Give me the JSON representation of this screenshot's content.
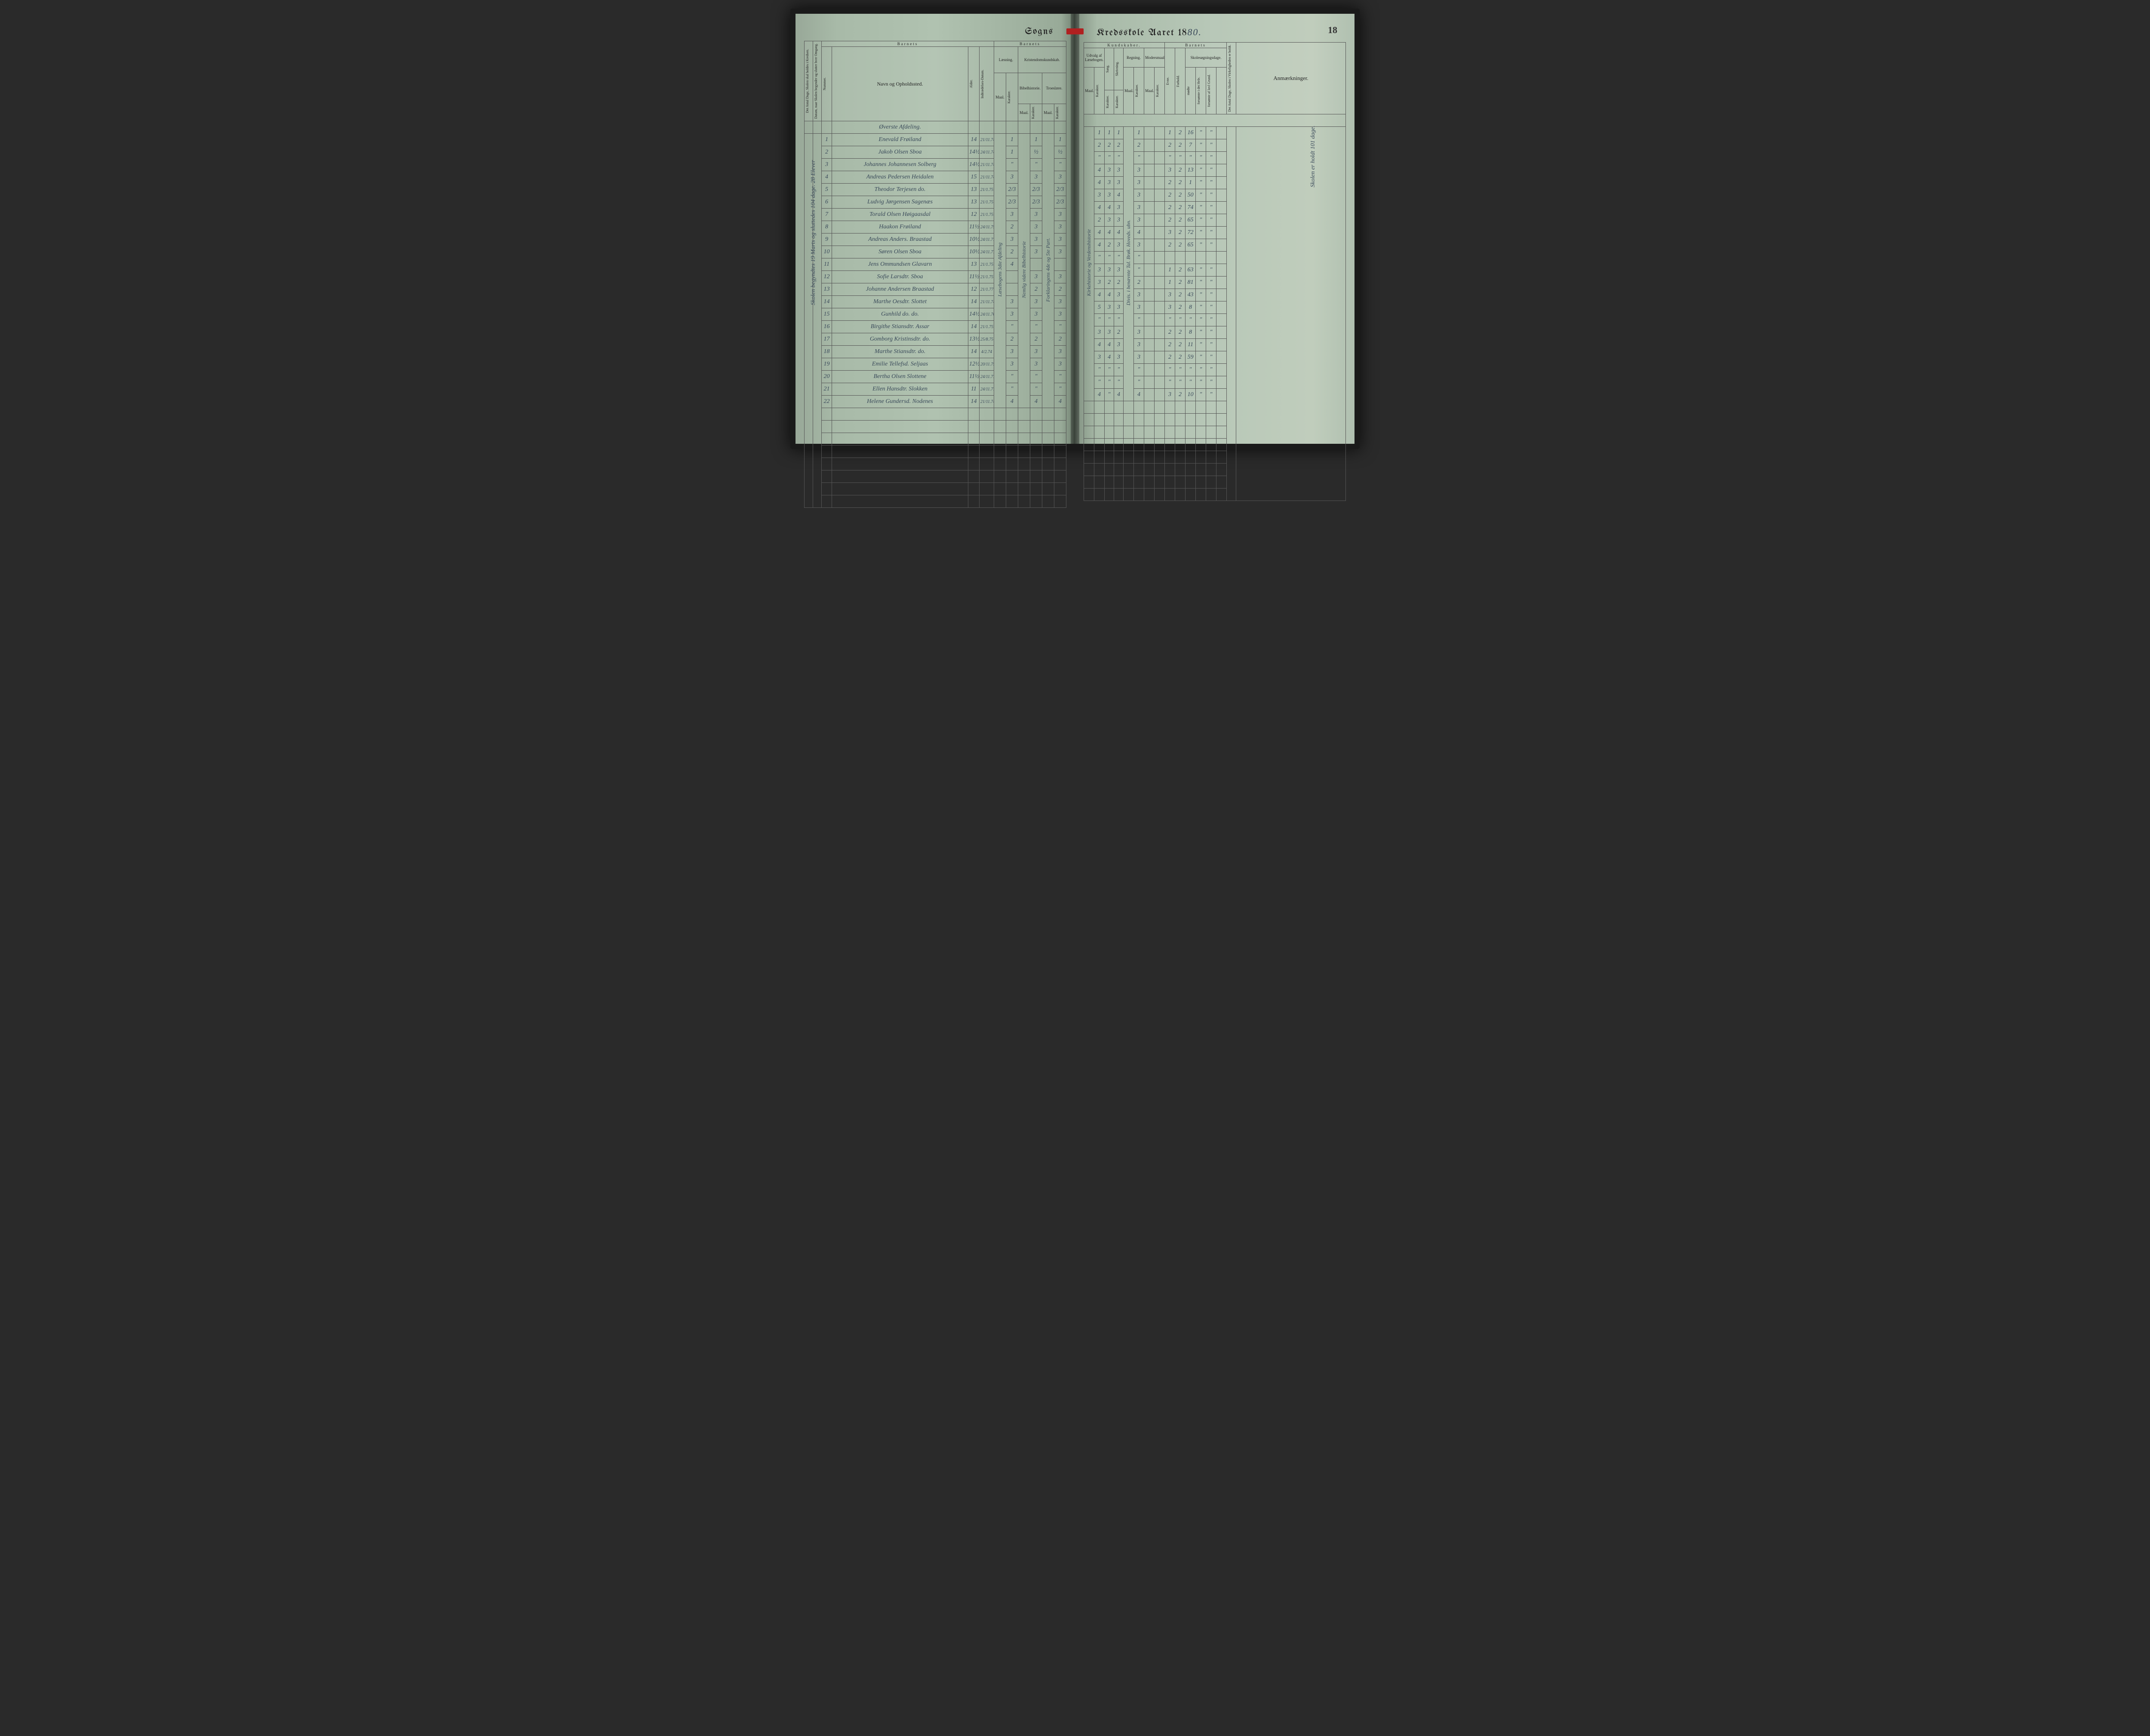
{
  "page_number": "18",
  "title_left": "Sogns",
  "title_right_prefix": "Kredsskole Aaret 18",
  "title_year_suffix": "80.",
  "colors": {
    "ink": "#3a4a5a",
    "print": "#222222",
    "rule": "#555555",
    "ribbon": "#b02020",
    "paper_left_start": "#98a898",
    "paper_left_end": "#708070",
    "paper_right_start": "#809080",
    "paper_right_end": "#b0c0b0",
    "cover": "#1a1a1a"
  },
  "left_margin_headers": {
    "col1": "Det Antal Dage, Skolen skal holdes i Kredsen.",
    "col2": "Datum, naar Skolen begynder og slutter hver Omgang."
  },
  "left_headers": {
    "barnets": "Barnets",
    "nummer": "Nummer.",
    "navn": "Navn og Opholdssted.",
    "alder": "Alder.",
    "indtr": "Indtrædelses-Datum.",
    "barnets2": "Barnets",
    "laesning": "Læsning.",
    "kristen": "Kristendomskundskab.",
    "bibel": "Bibelhistorie.",
    "troes": "Troeslære.",
    "maal": "Maal.",
    "kar": "Karakter."
  },
  "right_headers": {
    "kundskaber": "Kundskaber.",
    "udvalg": "Udvalg af Læsebogen.",
    "sang": "Sang.",
    "skriv": "Skrivning.",
    "regning": "Regning.",
    "modersmaal": "Modersmaal.",
    "barnets": "Barnets",
    "evne": "Evne.",
    "forhold": "Forhold.",
    "skolesogn": "Skolesøgningsdage.",
    "modte": "mødte",
    "fors1": "forsømte i det Hele.",
    "fors2": "forsømte af lovl Grund.",
    "antal": "Det Antal Dage, Skolen i Virkeligheden er holdt.",
    "anm": "Anmærkninger.",
    "maal": "Maal.",
    "kar": "Karakter."
  },
  "section_heading": "Øverste Afdeling.",
  "margin_note_left": "Skolen begyndtes 19 Marts og sluttedes 104 dage. 28 Elever",
  "margin_note_right": "Skolen er holdt 101 dage.",
  "vertical_in_table_left": {
    "laesning_maal": "Læsebogens 3die Afdeling",
    "bibel_maal": "Nemlig videre Bibelhistorie",
    "troes_maal": "Forklaringens 4de og 5te Part."
  },
  "vertical_in_table_right": {
    "udvalg_maal": "Kirkehistorie og Verdenshistorie",
    "regning_maal": "Divis. i benævnte Tal. Brøk. Hoveds. ubn.",
    "skriv_note": "og 4"
  },
  "rows": [
    {
      "n": "1",
      "name": "Enevald Frøiland",
      "age": "14",
      "dat": "21/11.74",
      "l_k": "1",
      "b_k": "1",
      "t_k": "1",
      "u_k": "1",
      "sa": "1",
      "sk": "1",
      "re_k": "1",
      "ev": "1",
      "fo": "2",
      "md": "16",
      "f1": "\"",
      "f2": "\""
    },
    {
      "n": "2",
      "name": "Jakob Olsen Sboa",
      "age": "14½",
      "dat": "24/11.74",
      "l_k": "1",
      "b_k": "½",
      "t_k": "½",
      "u_k": "2",
      "sa": "2",
      "sk": "2",
      "re_k": "2",
      "ev": "2",
      "fo": "2",
      "md": "7",
      "f1": "\"",
      "f2": "\""
    },
    {
      "n": "3",
      "name": "Johannes Johannesen Solberg",
      "age": "14½",
      "dat": "21/11.74",
      "l_k": "\"",
      "b_k": "\"",
      "t_k": "\"",
      "u_k": "\"",
      "sa": "\"",
      "sk": "\"",
      "re_k": "\"",
      "ev": "\"",
      "fo": "\"",
      "md": "\"",
      "f1": "\"",
      "f2": "\""
    },
    {
      "n": "4",
      "name": "Andreas Pedersen Heidalen",
      "age": "15",
      "dat": "21/11.74",
      "l_k": "3",
      "b_k": "3",
      "t_k": "3",
      "u_k": "4",
      "sa": "3",
      "sk": "3",
      "re_k": "3",
      "ev": "3",
      "fo": "2",
      "md": "13",
      "f1": "\"",
      "f2": "\""
    },
    {
      "n": "5",
      "name": "Theodor Terjesen   do.",
      "age": "13",
      "dat": "21/1.75",
      "l_k": "2/3",
      "b_k": "2/3",
      "t_k": "2/3",
      "u_k": "4",
      "sa": "3",
      "sk": "3",
      "re_k": "3",
      "ev": "2",
      "fo": "2",
      "md": "1",
      "f1": "\"",
      "f2": "\""
    },
    {
      "n": "6",
      "name": "Ludvig Jørgensen Sagenæs",
      "age": "13",
      "dat": "21/1.75",
      "l_k": "2/3",
      "b_k": "2/3",
      "t_k": "2/3",
      "u_k": "3",
      "sa": "3",
      "sk": "4",
      "re_k": "3",
      "ev": "2",
      "fo": "2",
      "md": "50",
      "f1": "\"",
      "f2": "\""
    },
    {
      "n": "7",
      "name": "Torald Olsen Høigaasdal",
      "age": "12",
      "dat": "21/1.75",
      "l_k": "3",
      "b_k": "3",
      "t_k": "3",
      "u_k": "4",
      "sa": "4",
      "sk": "3",
      "re_k": "3",
      "ev": "2",
      "fo": "2",
      "md": "74",
      "f1": "\"",
      "f2": "\""
    },
    {
      "n": "8",
      "name": "Haakon Frøiland",
      "age": "11½",
      "dat": "24/11.75",
      "l_k": "2",
      "b_k": "3",
      "t_k": "3",
      "u_k": "2",
      "sa": "3",
      "sk": "3",
      "re_k": "3",
      "ev": "2",
      "fo": "2",
      "md": "65",
      "f1": "\"",
      "f2": "\""
    },
    {
      "n": "9",
      "name": "Andreas Anders. Braastad",
      "age": "10½",
      "dat": "24/11.77",
      "l_k": "3",
      "b_k": "3",
      "t_k": "3",
      "u_k": "4",
      "sa": "4",
      "sk": "4",
      "re_k": "4",
      "ev": "3",
      "fo": "2",
      "md": "72",
      "f1": "\"",
      "f2": "\""
    },
    {
      "n": "10",
      "name": "Søren Olsen Sboa",
      "age": "10½",
      "dat": "24/11.77",
      "l_k": "2",
      "b_k": "3",
      "t_k": "3",
      "u_k": "4",
      "sa": "2",
      "sk": "3",
      "re_k": "3",
      "ev": "2",
      "fo": "2",
      "md": "65",
      "f1": "\"",
      "f2": "\""
    },
    {
      "n": "11",
      "name": "Jens Ommundsen Glavarn",
      "age": "13",
      "dat": "21/1.75",
      "l_k": "4",
      "b_k": "",
      "t_k": "",
      "u_k": "\"",
      "sa": "\"",
      "sk": "\"",
      "re_k": "\"",
      "ev": "",
      "fo": "",
      "md": "",
      "f1": "",
      "f2": ""
    },
    {
      "n": "12",
      "name": "Sofie Larsdtr. Sboa",
      "age": "11½",
      "dat": "21/1.75",
      "l_k": "",
      "b_k": "3",
      "t_k": "3",
      "u_k": "3",
      "sa": "3",
      "sk": "3",
      "re_k": "\"",
      "ev": "1",
      "fo": "2",
      "md": "63",
      "f1": "\"",
      "f2": "\""
    },
    {
      "n": "13",
      "name": "Johanne Andersen Braastad",
      "age": "12",
      "dat": "21/1.77",
      "l_k": "",
      "b_k": "2",
      "t_k": "2",
      "u_k": "3",
      "sa": "2",
      "sk": "2",
      "re_k": "2",
      "ev": "1",
      "fo": "2",
      "md": "81",
      "f1": "\"",
      "f2": "\""
    },
    {
      "n": "14",
      "name": "Marthe Oesdtr. Slottet",
      "age": "14",
      "dat": "21/11.74",
      "l_k": "3",
      "b_k": "3",
      "t_k": "3",
      "u_k": "4",
      "sa": "4",
      "sk": "3",
      "re_k": "3",
      "ev": "3",
      "fo": "2",
      "md": "43",
      "f1": "\"",
      "f2": "\""
    },
    {
      "n": "15",
      "name": "Gunhild   do.    do.",
      "age": "14½",
      "dat": "24/11.76",
      "l_k": "3",
      "b_k": "3",
      "t_k": "3",
      "u_k": "5",
      "sa": "3",
      "sk": "3",
      "re_k": "3",
      "ev": "3",
      "fo": "2",
      "md": "8",
      "f1": "\"",
      "f2": "\""
    },
    {
      "n": "16",
      "name": "Birgithe Stiansdtr. Assar",
      "age": "14",
      "dat": "21/1.75",
      "l_k": "\"",
      "b_k": "\"",
      "t_k": "\"",
      "u_k": "\"",
      "sa": "\"",
      "sk": "\"",
      "re_k": "\"",
      "ev": "\"",
      "fo": "\"",
      "md": "\"",
      "f1": "\"",
      "f2": "\""
    },
    {
      "n": "17",
      "name": "Gomborg Kristinsdtr.  do.",
      "age": "13½",
      "dat": "25/8.75",
      "l_k": "2",
      "b_k": "2",
      "t_k": "2",
      "u_k": "3",
      "sa": "3",
      "sk": "2",
      "re_k": "3",
      "ev": "2",
      "fo": "2",
      "md": "8",
      "f1": "\"",
      "f2": "\""
    },
    {
      "n": "18",
      "name": "Marthe Stiansdtr.   do.",
      "age": "14",
      "dat": "4/2.74",
      "l_k": "3",
      "b_k": "3",
      "t_k": "3",
      "u_k": "4",
      "sa": "4",
      "sk": "3",
      "re_k": "3",
      "ev": "2",
      "fo": "2",
      "md": "11",
      "f1": "\"",
      "f2": "\""
    },
    {
      "n": "19",
      "name": "Emilie Tellefsd. Seljaas",
      "age": "12½",
      "dat": "20/11.75",
      "l_k": "3",
      "b_k": "3",
      "t_k": "3",
      "u_k": "3",
      "sa": "4",
      "sk": "3",
      "re_k": "3",
      "ev": "2",
      "fo": "2",
      "md": "59",
      "f1": "\"",
      "f2": "\""
    },
    {
      "n": "20",
      "name": "Bertha Olsen Slottene",
      "age": "11½",
      "dat": "24/11.77",
      "l_k": "\"",
      "b_k": "\"",
      "t_k": "\"",
      "u_k": "\"",
      "sa": "\"",
      "sk": "\"",
      "re_k": "\"",
      "ev": "\"",
      "fo": "\"",
      "md": "\"",
      "f1": "\"",
      "f2": "\""
    },
    {
      "n": "21",
      "name": "Ellen Hansdtr. Slokken",
      "age": "11",
      "dat": "24/11.77",
      "l_k": "\"",
      "b_k": "\"",
      "t_k": "\"",
      "u_k": "\"",
      "sa": "\"",
      "sk": "\"",
      "re_k": "\"",
      "ev": "\"",
      "fo": "\"",
      "md": "\"",
      "f1": "\"",
      "f2": "\""
    },
    {
      "n": "22",
      "name": "Helene Gundersd. Nodenes",
      "age": "14",
      "dat": "21/11.74",
      "l_k": "4",
      "b_k": "4",
      "t_k": "4",
      "u_k": "4",
      "sa": "\"",
      "sk": "4",
      "re_k": "4",
      "ev": "3",
      "fo": "2",
      "md": "10",
      "f1": "\"",
      "f2": "\""
    }
  ],
  "blank_rows": 8
}
